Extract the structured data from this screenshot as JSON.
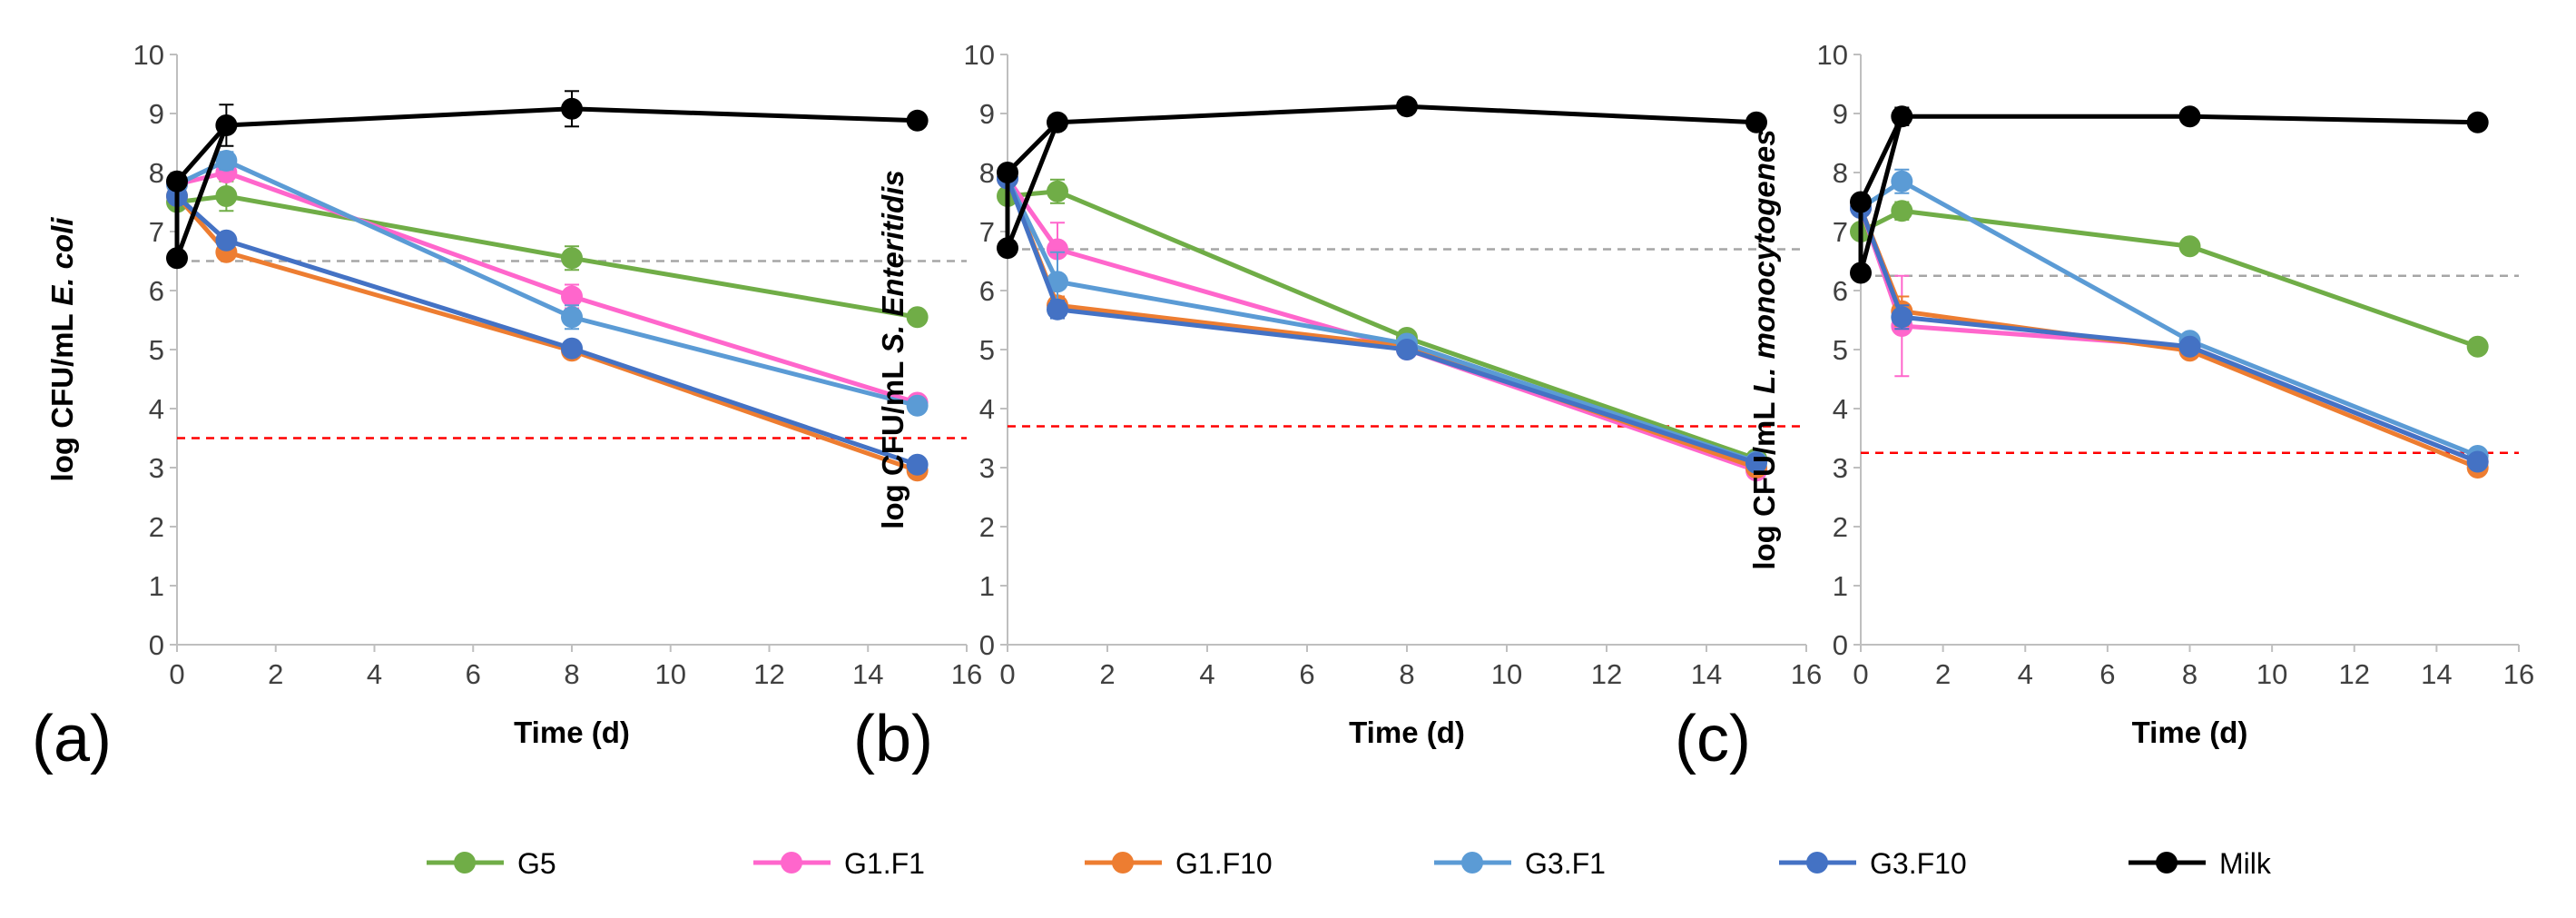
{
  "chart_data": [
    {
      "type": "line",
      "panel_label": "(a)",
      "xlabel": "Time (d)",
      "ylabel_prefix": "log CFU/mL ",
      "ylabel_organism": "E. coli",
      "x": [
        0,
        1,
        8,
        15
      ],
      "xlim": [
        0,
        16
      ],
      "xticks": [
        0,
        2,
        4,
        6,
        8,
        10,
        12,
        14,
        16
      ],
      "ylim": [
        0,
        10
      ],
      "yticks": [
        0,
        1,
        2,
        3,
        4,
        5,
        6,
        7,
        8,
        9,
        10
      ],
      "grid": false,
      "reference_lines": [
        {
          "y": 6.5,
          "color": "#a6a6a6",
          "style": "dashed"
        },
        {
          "y": 3.5,
          "color": "#ff0000",
          "style": "dashed"
        }
      ],
      "series": [
        {
          "name": "G5",
          "color": "#70ad47",
          "values": [
            7.5,
            7.6,
            6.55,
            5.55
          ],
          "errors": [
            0,
            0.25,
            0.2,
            0.05
          ]
        },
        {
          "name": "G1.F1",
          "color": "#ff66cc",
          "values": [
            7.8,
            8.0,
            5.9,
            4.1
          ],
          "errors": [
            0,
            0.1,
            0.2,
            0.05
          ]
        },
        {
          "name": "G1.F10",
          "color": "#ed7d31",
          "values": [
            7.6,
            6.65,
            4.98,
            2.95
          ],
          "errors": [
            0,
            0.1,
            0.1,
            0.05
          ]
        },
        {
          "name": "G3.F1",
          "color": "#5b9bd5",
          "values": [
            7.8,
            8.2,
            5.55,
            4.05
          ],
          "errors": [
            0,
            0.15,
            0.2,
            0.05
          ]
        },
        {
          "name": "G3.F10",
          "color": "#4472c4",
          "values": [
            7.6,
            6.85,
            5.02,
            3.05
          ],
          "errors": [
            0,
            0.1,
            0.1,
            0.05
          ]
        },
        {
          "name": "Milk",
          "color": "#000000",
          "values": [
            6.55,
            8.8,
            9.08,
            8.88
          ],
          "errors": [
            0,
            0.35,
            0.3,
            0.08
          ]
        },
        {
          "name": "Milk",
          "color": "#000000",
          "values": [
            7.85
          ],
          "x": [
            0
          ],
          "errors": [
            0.05
          ],
          "note": "day-0 second point"
        }
      ]
    },
    {
      "type": "line",
      "panel_label": "(b)",
      "xlabel": "Time (d)",
      "ylabel_prefix": "log CFU/mL ",
      "ylabel_organism": "S. Enteritidis",
      "x": [
        0,
        1,
        8,
        15
      ],
      "xlim": [
        0,
        16
      ],
      "xticks": [
        0,
        2,
        4,
        6,
        8,
        10,
        12,
        14,
        16
      ],
      "ylim": [
        0,
        10
      ],
      "yticks": [
        0,
        1,
        2,
        3,
        4,
        5,
        6,
        7,
        8,
        9,
        10
      ],
      "grid": false,
      "reference_lines": [
        {
          "y": 6.7,
          "color": "#a6a6a6",
          "style": "dashed"
        },
        {
          "y": 3.7,
          "color": "#ff0000",
          "style": "dashed"
        }
      ],
      "series": [
        {
          "name": "G5",
          "color": "#70ad47",
          "values": [
            7.6,
            7.68,
            5.2,
            3.15
          ],
          "errors": [
            0,
            0.2,
            0.1,
            0.05
          ]
        },
        {
          "name": "G1.F1",
          "color": "#ff66cc",
          "values": [
            7.9,
            6.7,
            5.0,
            2.95
          ],
          "errors": [
            0,
            0.45,
            0.1,
            0.05
          ]
        },
        {
          "name": "G1.F10",
          "color": "#ed7d31",
          "values": [
            7.9,
            5.75,
            5.05,
            3.0
          ],
          "errors": [
            0,
            0.15,
            0.1,
            0.05
          ]
        },
        {
          "name": "G3.F1",
          "color": "#5b9bd5",
          "values": [
            7.9,
            6.15,
            5.1,
            3.1
          ],
          "errors": [
            0,
            0.5,
            0.1,
            0.05
          ]
        },
        {
          "name": "G3.F10",
          "color": "#4472c4",
          "values": [
            7.9,
            5.68,
            5.0,
            3.08
          ],
          "errors": [
            0,
            0.15,
            0.1,
            0.05
          ]
        },
        {
          "name": "Milk",
          "color": "#000000",
          "values": [
            6.72,
            8.85,
            9.12,
            8.85
          ],
          "errors": [
            0,
            0.1,
            0.1,
            0.05
          ]
        },
        {
          "name": "Milk",
          "color": "#000000",
          "values": [
            8.0
          ],
          "x": [
            0
          ],
          "errors": [
            0.05
          ],
          "note": "day-0 second point"
        }
      ]
    },
    {
      "type": "line",
      "panel_label": "(c)",
      "xlabel": "Time (d)",
      "ylabel_prefix": "log CFU/mL ",
      "ylabel_organism": "L. monocytogenes",
      "x": [
        0,
        1,
        8,
        15
      ],
      "xlim": [
        0,
        16
      ],
      "xticks": [
        0,
        2,
        4,
        6,
        8,
        10,
        12,
        14,
        16
      ],
      "ylim": [
        0,
        10
      ],
      "yticks": [
        0,
        1,
        2,
        3,
        4,
        5,
        6,
        7,
        8,
        9,
        10
      ],
      "grid": false,
      "reference_lines": [
        {
          "y": 6.25,
          "color": "#a6a6a6",
          "style": "dashed"
        },
        {
          "y": 3.25,
          "color": "#ff0000",
          "style": "dashed"
        }
      ],
      "series": [
        {
          "name": "G5",
          "color": "#70ad47",
          "values": [
            7.0,
            7.35,
            6.75,
            5.05
          ],
          "errors": [
            0,
            0.15,
            0.1,
            0.05
          ]
        },
        {
          "name": "G1.F1",
          "color": "#ff66cc",
          "values": [
            7.4,
            5.4,
            5.05,
            3.1
          ],
          "errors": [
            0,
            0.85,
            0.1,
            0.05
          ]
        },
        {
          "name": "G1.F10",
          "color": "#ed7d31",
          "values": [
            7.4,
            5.65,
            4.98,
            3.0
          ],
          "errors": [
            0,
            0.25,
            0.1,
            0.05
          ]
        },
        {
          "name": "G3.F1",
          "color": "#5b9bd5",
          "values": [
            7.4,
            7.85,
            5.15,
            3.2
          ],
          "errors": [
            0,
            0.2,
            0.1,
            0.05
          ]
        },
        {
          "name": "G3.F10",
          "color": "#4472c4",
          "values": [
            7.4,
            5.55,
            5.05,
            3.1
          ],
          "errors": [
            0,
            0.2,
            0.1,
            0.05
          ]
        },
        {
          "name": "Milk",
          "color": "#000000",
          "values": [
            6.3,
            8.95,
            8.95,
            8.85
          ],
          "errors": [
            0,
            0.15,
            0.08,
            0.05
          ]
        },
        {
          "name": "Milk",
          "color": "#000000",
          "values": [
            7.5
          ],
          "x": [
            0
          ],
          "errors": [
            0.05
          ],
          "note": "day-0 second point"
        }
      ]
    }
  ],
  "legend": {
    "placement": "bottom-center",
    "items": [
      {
        "label": "G5",
        "color": "#70ad47"
      },
      {
        "label": "G1.F1",
        "color": "#ff66cc"
      },
      {
        "label": "G1.F10",
        "color": "#ed7d31"
      },
      {
        "label": "G3.F1",
        "color": "#5b9bd5"
      },
      {
        "label": "G3.F10",
        "color": "#4472c4"
      },
      {
        "label": "Milk",
        "color": "#000000"
      }
    ]
  }
}
